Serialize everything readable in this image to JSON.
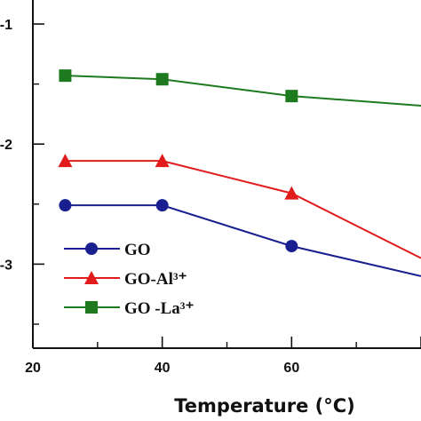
{
  "chart_data": {
    "type": "line",
    "xlabel": "Temperature (°C)",
    "x_tick_labels": [
      "20",
      "40",
      "60"
    ],
    "y_tick_labels": [
      "-1",
      "-2",
      "-3"
    ],
    "xlim": [
      20,
      80
    ],
    "ylim": [
      -3.7,
      -0.8
    ],
    "x": [
      25,
      40,
      60,
      80
    ],
    "series": [
      {
        "name": "GO",
        "marker": "circle",
        "color": "#1a1f8f",
        "values": [
          -2.51,
          -2.51,
          -2.85,
          -3.1
        ]
      },
      {
        "name": "GO-Al³⁺",
        "marker": "triangle",
        "color": "#e11b1b",
        "values": [
          -2.14,
          -2.14,
          -2.41,
          -2.95
        ]
      },
      {
        "name": "GO -La³⁺",
        "marker": "square",
        "color": "#1e7a1e",
        "values": [
          -1.43,
          -1.46,
          -1.6,
          -1.68
        ]
      }
    ],
    "legend": "bottom-left",
    "grid": false
  }
}
